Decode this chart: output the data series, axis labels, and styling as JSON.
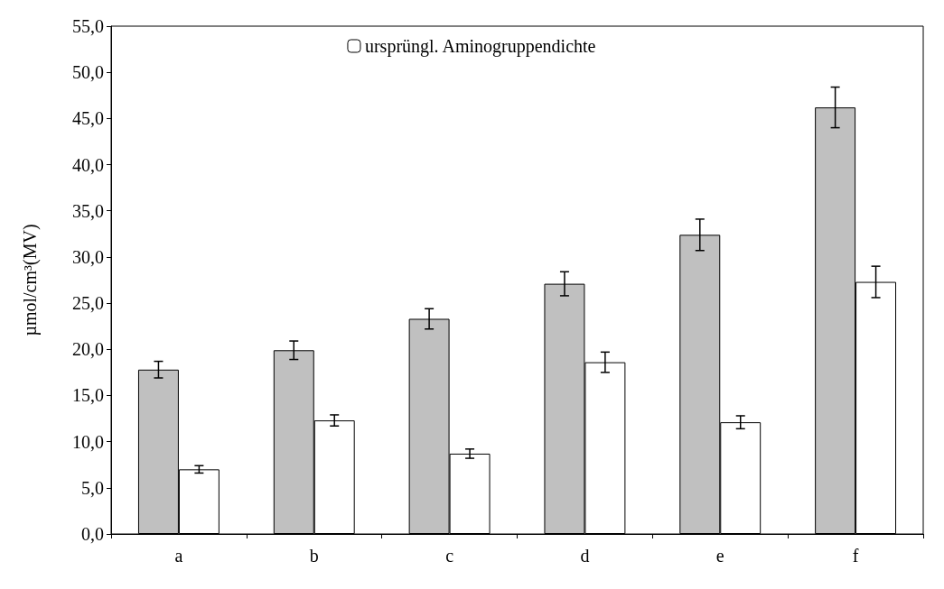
{
  "chart_data": {
    "type": "bar",
    "ylabel": "µmol/cm³(MV)",
    "categories": [
      "a",
      "b",
      "c",
      "d",
      "e",
      "f"
    ],
    "series": [
      {
        "color": "#c0c0c0",
        "values": [
          17.8,
          19.9,
          23.3,
          27.1,
          32.4,
          46.2
        ],
        "errors": [
          0.9,
          1.0,
          1.1,
          1.3,
          1.7,
          2.2
        ]
      },
      {
        "name": "ursprüngl. Aminogruppendichte",
        "color": "#ffffff",
        "values": [
          7.0,
          12.3,
          8.7,
          18.6,
          12.1,
          27.3
        ],
        "errors": [
          0.4,
          0.6,
          0.5,
          1.1,
          0.7,
          1.7
        ]
      }
    ],
    "ylim": [
      0,
      55
    ],
    "yticks": [
      {
        "value": 0,
        "label": "0,0"
      },
      {
        "value": 5,
        "label": "5,0"
      },
      {
        "value": 10,
        "label": "10,0"
      },
      {
        "value": 15,
        "label": "15,0"
      },
      {
        "value": 20,
        "label": "20,0"
      },
      {
        "value": 25,
        "label": "25,0"
      },
      {
        "value": 30,
        "label": "30,0"
      },
      {
        "value": 35,
        "label": "35,0"
      },
      {
        "value": 40,
        "label": "40,0"
      },
      {
        "value": 45,
        "label": "45,0"
      },
      {
        "value": 50,
        "label": "50,0"
      },
      {
        "value": 55,
        "label": "55,0"
      }
    ],
    "grid": false,
    "legend": "top"
  }
}
